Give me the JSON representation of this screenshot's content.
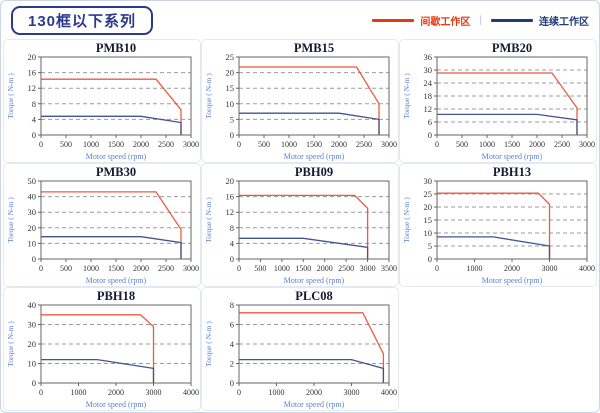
{
  "header": {
    "title": "130框以下系列",
    "legend": [
      {
        "label": "间歇工作区",
        "color": "#e8380d"
      },
      {
        "label": "连续工作区",
        "color": "#203c78"
      }
    ],
    "legend_separator": "|"
  },
  "colors": {
    "intermittent_curve": "#ec5a42",
    "continuous_curve": "#42548f",
    "gridline": "#9b9b9b",
    "plot_border": "#666666",
    "tick_text": "#333333",
    "axis_label_text": "#5b7fd0",
    "chart_title_text": "#141b33"
  },
  "chart_data": [
    {
      "type": "line",
      "title": "PMB10",
      "xlabel": "Motor speed (rpm)",
      "ylabel": "Torque ( N-m )",
      "xlim": [
        0,
        3000
      ],
      "xstep": 500,
      "ylim": [
        0,
        20
      ],
      "ystep": 4,
      "grid": "horizontal-dashed",
      "series": [
        {
          "name": "间歇工作区",
          "role": "intermittent",
          "points": [
            [
              0,
              14.3
            ],
            [
              2300,
              14.3
            ],
            [
              2800,
              6.5
            ],
            [
              2800,
              0
            ]
          ]
        },
        {
          "name": "连续工作区",
          "role": "continuous",
          "points": [
            [
              0,
              4.8
            ],
            [
              2000,
              4.8
            ],
            [
              2800,
              3.2
            ],
            [
              2800,
              0
            ]
          ]
        }
      ]
    },
    {
      "type": "line",
      "title": "PMB15",
      "xlabel": "Motor speed (rpm)",
      "ylabel": "Torque ( N-m )",
      "xlim": [
        0,
        3000
      ],
      "xstep": 500,
      "ylim": [
        0,
        25
      ],
      "ystep": 5,
      "grid": "horizontal-dashed",
      "series": [
        {
          "name": "间歇工作区",
          "role": "intermittent",
          "points": [
            [
              0,
              21.8
            ],
            [
              2350,
              21.8
            ],
            [
              2800,
              10
            ],
            [
              2800,
              0
            ]
          ]
        },
        {
          "name": "连续工作区",
          "role": "continuous",
          "points": [
            [
              0,
              7
            ],
            [
              2000,
              7
            ],
            [
              2800,
              5
            ],
            [
              2800,
              0
            ]
          ]
        }
      ]
    },
    {
      "type": "line",
      "title": "PMB20",
      "xlabel": "Motor speed (rpm)",
      "ylabel": "Torque ( N-m )",
      "xlim": [
        0,
        3000
      ],
      "xstep": 500,
      "ylim": [
        0,
        36
      ],
      "ystep": 6,
      "grid": "horizontal-dashed",
      "series": [
        {
          "name": "间歇工作区",
          "role": "intermittent",
          "points": [
            [
              0,
              28.6
            ],
            [
              2300,
              28.6
            ],
            [
              2800,
              12.5
            ],
            [
              2800,
              0
            ]
          ]
        },
        {
          "name": "连续工作区",
          "role": "continuous",
          "points": [
            [
              0,
              9.5
            ],
            [
              2000,
              9.5
            ],
            [
              2800,
              7
            ],
            [
              2800,
              0
            ]
          ]
        }
      ]
    },
    {
      "type": "line",
      "title": "PMB30",
      "xlabel": "Motor speed (rpm)",
      "ylabel": "Torque ( N-m )",
      "xlim": [
        0,
        3000
      ],
      "xstep": 500,
      "ylim": [
        0,
        50
      ],
      "ystep": 10,
      "grid": "horizontal-dashed",
      "series": [
        {
          "name": "间歇工作区",
          "role": "intermittent",
          "points": [
            [
              0,
              43
            ],
            [
              2300,
              43
            ],
            [
              2800,
              19
            ],
            [
              2800,
              0
            ]
          ]
        },
        {
          "name": "连续工作区",
          "role": "continuous",
          "points": [
            [
              0,
              14.3
            ],
            [
              2000,
              14.3
            ],
            [
              2800,
              10.5
            ],
            [
              2800,
              0
            ]
          ]
        }
      ]
    },
    {
      "type": "line",
      "title": "PBH09",
      "xlabel": "Motor speed (rpm)",
      "ylabel": "Torque ( N-m )",
      "xlim": [
        0,
        3500
      ],
      "xstep": 500,
      "ylim": [
        0,
        20
      ],
      "ystep": 4,
      "grid": "horizontal-dashed",
      "series": [
        {
          "name": "间歇工作区",
          "role": "intermittent",
          "points": [
            [
              0,
              16.3
            ],
            [
              2700,
              16.3
            ],
            [
              3000,
              13
            ],
            [
              3000,
              0
            ]
          ]
        },
        {
          "name": "连续工作区",
          "role": "continuous",
          "points": [
            [
              0,
              5.3
            ],
            [
              1500,
              5.3
            ],
            [
              3000,
              3
            ],
            [
              3000,
              0
            ]
          ]
        }
      ]
    },
    {
      "type": "line",
      "title": "PBH13",
      "xlabel": "Motor speed (rpm)",
      "ylabel": "Torque ( N-m )",
      "xlim": [
        0,
        4000
      ],
      "xstep": 1000,
      "ylim": [
        0,
        30
      ],
      "ystep": 5,
      "grid": "horizontal-dashed",
      "series": [
        {
          "name": "间歇工作区",
          "role": "intermittent",
          "points": [
            [
              0,
              25.3
            ],
            [
              2700,
              25.3
            ],
            [
              3000,
              21
            ],
            [
              3000,
              0
            ]
          ]
        },
        {
          "name": "连续工作区",
          "role": "continuous",
          "points": [
            [
              0,
              8.5
            ],
            [
              1500,
              8.5
            ],
            [
              3000,
              5
            ],
            [
              3000,
              0
            ]
          ]
        }
      ]
    },
    {
      "type": "line",
      "title": "PBH18",
      "xlabel": "Motor speed (rpm)",
      "ylabel": "Torque ( N-m )",
      "xlim": [
        0,
        4000
      ],
      "xstep": 1000,
      "ylim": [
        0,
        40
      ],
      "ystep": 10,
      "grid": "horizontal-dashed",
      "series": [
        {
          "name": "间歇工作区",
          "role": "intermittent",
          "points": [
            [
              0,
              35
            ],
            [
              2650,
              35
            ],
            [
              3000,
              29
            ],
            [
              3000,
              0
            ]
          ]
        },
        {
          "name": "连续工作区",
          "role": "continuous",
          "points": [
            [
              0,
              12
            ],
            [
              1500,
              12
            ],
            [
              3000,
              7.5
            ],
            [
              3000,
              0
            ]
          ]
        }
      ]
    },
    {
      "type": "line",
      "title": "PLC08",
      "xlabel": "Motor speed (rpm)",
      "ylabel": "Torque ( N-m )",
      "xlim": [
        0,
        4000
      ],
      "xstep": 1000,
      "ylim": [
        0,
        8
      ],
      "ystep": 2,
      "grid": "horizontal-dashed",
      "series": [
        {
          "name": "间歇工作区",
          "role": "intermittent",
          "points": [
            [
              0,
              7.2
            ],
            [
              3300,
              7.2
            ],
            [
              3850,
              3
            ],
            [
              3850,
              0
            ]
          ]
        },
        {
          "name": "连续工作区",
          "role": "continuous",
          "points": [
            [
              0,
              2.4
            ],
            [
              3000,
              2.4
            ],
            [
              3850,
              1.5
            ],
            [
              3850,
              0
            ]
          ]
        }
      ]
    }
  ]
}
